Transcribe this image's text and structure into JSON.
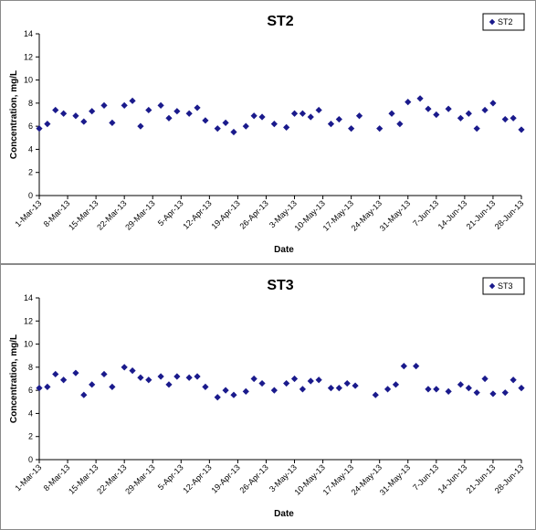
{
  "chart_data": [
    {
      "type": "scatter",
      "title": "ST2",
      "xlabel": "Date",
      "ylabel": "Concentration, mg/L",
      "ylim": [
        0,
        14
      ],
      "yticks": [
        "0",
        "2",
        "4",
        "6",
        "8",
        "10",
        "12",
        "14"
      ],
      "xlim": [
        "2013-03-01",
        "2013-06-28"
      ],
      "xtick_labels": [
        "1-Mar-13",
        "8-Mar-13",
        "15-Mar-13",
        "22-Mar-13",
        "29-Mar-13",
        "5-Apr-13",
        "12-Apr-13",
        "19-Apr-13",
        "26-Apr-13",
        "3-May-13",
        "10-May-13",
        "17-May-13",
        "24-May-13",
        "31-May-13",
        "7-Jun-13",
        "14-Jun-13",
        "21-Jun-13",
        "28-Jun-13"
      ],
      "grid": false,
      "legend_position": "top-right",
      "series": [
        {
          "name": "ST2",
          "color": "#1a1a8c",
          "marker": "diamond",
          "points": [
            [
              "2013-03-01",
              5.8
            ],
            [
              "2013-03-03",
              6.2
            ],
            [
              "2013-03-05",
              7.4
            ],
            [
              "2013-03-07",
              7.1
            ],
            [
              "2013-03-10",
              6.9
            ],
            [
              "2013-03-12",
              6.4
            ],
            [
              "2013-03-14",
              7.3
            ],
            [
              "2013-03-17",
              7.8
            ],
            [
              "2013-03-19",
              6.3
            ],
            [
              "2013-03-22",
              7.8
            ],
            [
              "2013-03-24",
              8.2
            ],
            [
              "2013-03-26",
              6.0
            ],
            [
              "2013-03-28",
              7.4
            ],
            [
              "2013-03-31",
              7.8
            ],
            [
              "2013-04-02",
              6.7
            ],
            [
              "2013-04-04",
              7.3
            ],
            [
              "2013-04-07",
              7.1
            ],
            [
              "2013-04-09",
              7.6
            ],
            [
              "2013-04-11",
              6.5
            ],
            [
              "2013-04-14",
              5.8
            ],
            [
              "2013-04-16",
              6.3
            ],
            [
              "2013-04-18",
              5.5
            ],
            [
              "2013-04-21",
              6.0
            ],
            [
              "2013-04-23",
              6.9
            ],
            [
              "2013-04-25",
              6.8
            ],
            [
              "2013-04-28",
              6.2
            ],
            [
              "2013-05-01",
              5.9
            ],
            [
              "2013-05-03",
              7.1
            ],
            [
              "2013-05-05",
              7.1
            ],
            [
              "2013-05-07",
              6.8
            ],
            [
              "2013-05-09",
              7.4
            ],
            [
              "2013-05-12",
              6.2
            ],
            [
              "2013-05-14",
              6.6
            ],
            [
              "2013-05-17",
              5.8
            ],
            [
              "2013-05-19",
              6.9
            ],
            [
              "2013-05-24",
              5.8
            ],
            [
              "2013-05-27",
              7.1
            ],
            [
              "2013-05-29",
              6.2
            ],
            [
              "2013-05-31",
              8.1
            ],
            [
              "2013-06-03",
              8.4
            ],
            [
              "2013-06-05",
              7.5
            ],
            [
              "2013-06-07",
              7.0
            ],
            [
              "2013-06-10",
              7.5
            ],
            [
              "2013-06-13",
              6.7
            ],
            [
              "2013-06-15",
              7.1
            ],
            [
              "2013-06-17",
              5.8
            ],
            [
              "2013-06-19",
              7.4
            ],
            [
              "2013-06-21",
              8.0
            ],
            [
              "2013-06-24",
              6.6
            ],
            [
              "2013-06-26",
              6.7
            ],
            [
              "2013-06-28",
              5.7
            ]
          ]
        }
      ]
    },
    {
      "type": "scatter",
      "title": "ST3",
      "xlabel": "Date",
      "ylabel": "Concentration, mg/L",
      "ylim": [
        0,
        14
      ],
      "yticks": [
        "0",
        "2",
        "4",
        "6",
        "8",
        "10",
        "12",
        "14"
      ],
      "xlim": [
        "2013-03-01",
        "2013-06-28"
      ],
      "xtick_labels": [
        "1-Mar-13",
        "8-Mar-13",
        "15-Mar-13",
        "22-Mar-13",
        "29-Mar-13",
        "5-Apr-13",
        "12-Apr-13",
        "19-Apr-13",
        "26-Apr-13",
        "3-May-13",
        "10-May-13",
        "17-May-13",
        "24-May-13",
        "31-May-13",
        "7-Jun-13",
        "14-Jun-13",
        "21-Jun-13",
        "28-Jun-13"
      ],
      "grid": false,
      "legend_position": "top-right",
      "series": [
        {
          "name": "ST3",
          "color": "#1a1a8c",
          "marker": "diamond",
          "points": [
            [
              "2013-03-01",
              6.2
            ],
            [
              "2013-03-03",
              6.3
            ],
            [
              "2013-03-05",
              7.4
            ],
            [
              "2013-03-07",
              6.9
            ],
            [
              "2013-03-10",
              7.5
            ],
            [
              "2013-03-12",
              5.6
            ],
            [
              "2013-03-14",
              6.5
            ],
            [
              "2013-03-17",
              7.4
            ],
            [
              "2013-03-19",
              6.3
            ],
            [
              "2013-03-22",
              8.0
            ],
            [
              "2013-03-24",
              7.7
            ],
            [
              "2013-03-26",
              7.1
            ],
            [
              "2013-03-28",
              6.9
            ],
            [
              "2013-03-31",
              7.2
            ],
            [
              "2013-04-02",
              6.5
            ],
            [
              "2013-04-04",
              7.2
            ],
            [
              "2013-04-07",
              7.1
            ],
            [
              "2013-04-09",
              7.2
            ],
            [
              "2013-04-11",
              6.3
            ],
            [
              "2013-04-14",
              5.4
            ],
            [
              "2013-04-16",
              6.0
            ],
            [
              "2013-04-18",
              5.6
            ],
            [
              "2013-04-21",
              5.9
            ],
            [
              "2013-04-23",
              7.0
            ],
            [
              "2013-04-25",
              6.6
            ],
            [
              "2013-04-28",
              6.0
            ],
            [
              "2013-05-01",
              6.6
            ],
            [
              "2013-05-03",
              7.0
            ],
            [
              "2013-05-05",
              6.1
            ],
            [
              "2013-05-07",
              6.8
            ],
            [
              "2013-05-09",
              6.9
            ],
            [
              "2013-05-12",
              6.2
            ],
            [
              "2013-05-14",
              6.2
            ],
            [
              "2013-05-16",
              6.6
            ],
            [
              "2013-05-18",
              6.4
            ],
            [
              "2013-05-23",
              5.6
            ],
            [
              "2013-05-26",
              6.1
            ],
            [
              "2013-05-28",
              6.5
            ],
            [
              "2013-05-30",
              8.1
            ],
            [
              "2013-06-02",
              8.1
            ],
            [
              "2013-06-05",
              6.1
            ],
            [
              "2013-06-07",
              6.1
            ],
            [
              "2013-06-10",
              5.9
            ],
            [
              "2013-06-13",
              6.5
            ],
            [
              "2013-06-15",
              6.2
            ],
            [
              "2013-06-17",
              5.8
            ],
            [
              "2013-06-19",
              7.0
            ],
            [
              "2013-06-21",
              5.7
            ],
            [
              "2013-06-24",
              5.8
            ],
            [
              "2013-06-26",
              6.9
            ],
            [
              "2013-06-28",
              6.2
            ]
          ]
        }
      ]
    }
  ]
}
